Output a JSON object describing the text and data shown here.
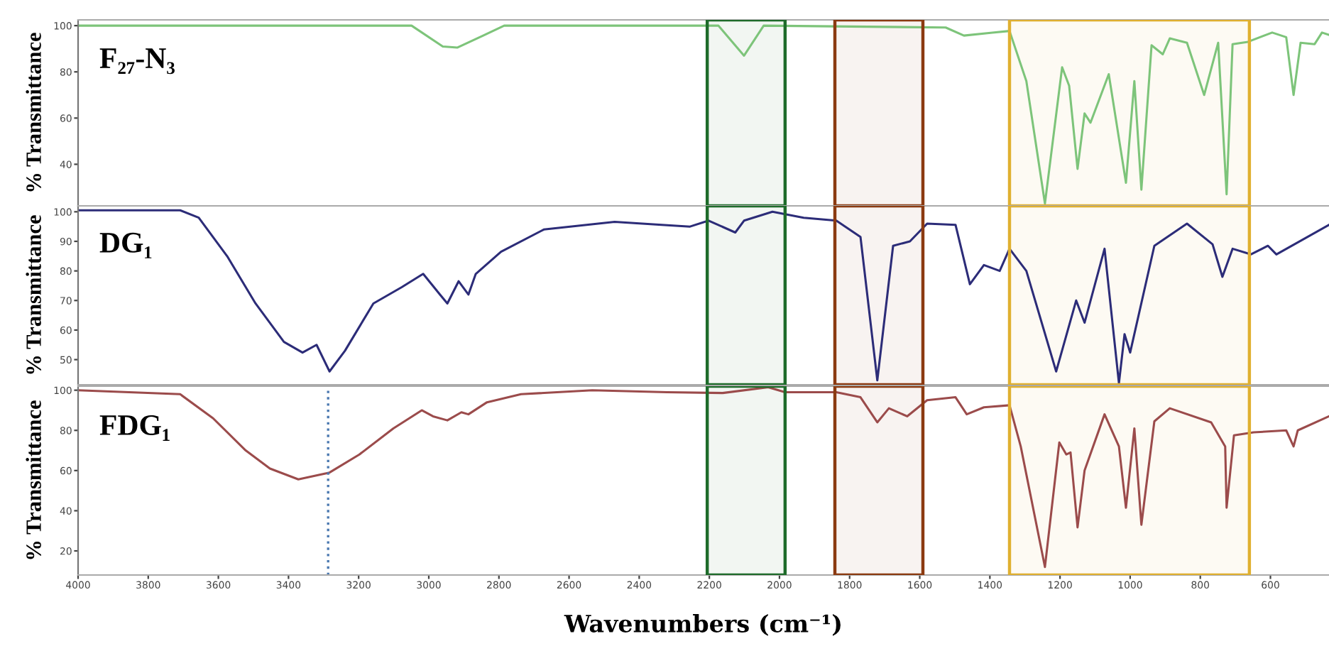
{
  "chart_data": [
    {
      "type": "line",
      "title": "F₂₇-N₃",
      "ylabel": "% Transmittance",
      "xlim": [
        4000,
        433
      ],
      "ylim": [
        22,
        102.5
      ],
      "yticks": [
        40,
        60,
        80,
        100
      ],
      "tick_labels": "y",
      "grid": false,
      "x": [
        4000,
        3300,
        3049,
        2960,
        2919,
        2846,
        2785,
        2300,
        2174,
        2101,
        2045,
        1526,
        1474,
        1393,
        1344,
        1296,
        1243,
        1194,
        1174,
        1150,
        1130,
        1113,
        1061,
        1012,
        988,
        968,
        939,
        907,
        887,
        838,
        789,
        749,
        725,
        708,
        664,
        595,
        555,
        534,
        514,
        474,
        453,
        433
      ],
      "series": [
        {
          "color": "#7dc47a",
          "values": [
            100,
            100,
            100,
            91,
            90.5,
            95.6,
            100,
            100,
            100,
            87,
            100,
            99.2,
            95.7,
            97,
            97.7,
            76,
            23,
            82,
            74,
            38,
            62,
            58,
            79,
            32,
            76,
            29,
            91.5,
            87.6,
            94.5,
            92.6,
            70,
            92.6,
            27,
            92,
            93,
            97,
            95,
            70,
            92.6,
            92,
            97,
            96
          ]
        }
      ],
      "bands": [
        {
          "axis": "x",
          "from": 2206,
          "to": 1984,
          "color": "#1e6b2a"
        },
        {
          "axis": "x",
          "from": 1842,
          "to": 1591,
          "color": "#8b3a10"
        },
        {
          "axis": "x",
          "from": 1344,
          "to": 660,
          "color": "#e0b030"
        }
      ]
    },
    {
      "type": "line",
      "title": "DG₁",
      "ylabel": "% Transmittance",
      "xlim": [
        4000,
        433
      ],
      "ylim": [
        41.5,
        102
      ],
      "yticks": [
        50,
        60,
        70,
        80,
        90,
        100
      ],
      "tick_labels": "y",
      "grid": false,
      "x": [
        4000,
        3709,
        3656,
        3575,
        3494,
        3413,
        3360,
        3320,
        3283,
        3239,
        3158,
        3077,
        3016,
        2968,
        2947,
        2915,
        2887,
        2866,
        2794,
        2672,
        2470,
        2336,
        2255,
        2202,
        2126,
        2101,
        2020,
        1931,
        1838,
        1769,
        1721,
        1676,
        1628,
        1579,
        1498,
        1457,
        1417,
        1372,
        1344,
        1296,
        1211,
        1154,
        1130,
        1073,
        1032,
        1016,
        1000,
        931,
        838,
        765,
        737,
        708,
        656,
        607,
        583,
        433
      ],
      "series": [
        {
          "color": "#2c2c78",
          "values": [
            100.5,
            100.5,
            98,
            85,
            69,
            56,
            52.4,
            55,
            46,
            53,
            69,
            74.5,
            79,
            72,
            69,
            76.5,
            72,
            79,
            86.5,
            94,
            96.6,
            95.6,
            95,
            97,
            93,
            97,
            100,
            98,
            97,
            91.5,
            43,
            88.5,
            90,
            96,
            95.6,
            75.5,
            82,
            80,
            87.5,
            80,
            46,
            70,
            62.5,
            87.5,
            42,
            58.6,
            52.4,
            88.5,
            96,
            89,
            78,
            87.5,
            85.6,
            88.5,
            85.6,
            95.6
          ]
        }
      ],
      "bands": [
        {
          "axis": "x",
          "from": 2206,
          "to": 1984,
          "color": "#1e6b2a"
        },
        {
          "axis": "x",
          "from": 1842,
          "to": 1591,
          "color": "#8b3a10"
        },
        {
          "axis": "x",
          "from": 1344,
          "to": 660,
          "color": "#e0b030"
        }
      ]
    },
    {
      "type": "line",
      "title": "FDG₁",
      "ylabel": "% Transmittance",
      "xlabel": "Wavenumbers (cm⁻¹)",
      "xlim": [
        4000,
        433
      ],
      "ylim": [
        8,
        102
      ],
      "yticks": [
        20,
        40,
        60,
        80,
        100
      ],
      "xticks": [
        4000,
        3800,
        3600,
        3400,
        3200,
        3000,
        2800,
        2600,
        2400,
        2200,
        2000,
        1800,
        1600,
        1400,
        1200,
        1000,
        800,
        600
      ],
      "grid": false,
      "x": [
        4000,
        3709,
        3615,
        3522,
        3453,
        3372,
        3283,
        3198,
        3101,
        3020,
        2988,
        2947,
        2907,
        2887,
        2834,
        2737,
        2534,
        2320,
        2162,
        2032,
        1984,
        1838,
        1769,
        1721,
        1688,
        1636,
        1579,
        1498,
        1466,
        1417,
        1344,
        1312,
        1243,
        1202,
        1182,
        1170,
        1150,
        1130,
        1073,
        1032,
        1012,
        988,
        968,
        931,
        887,
        769,
        729,
        725,
        704,
        648,
        555,
        534,
        522,
        433
      ],
      "series": [
        {
          "color": "#9b4b4b",
          "values": [
            100,
            98,
            86,
            70,
            61,
            55.6,
            59,
            68,
            81,
            90,
            87,
            85,
            89,
            88,
            94,
            98,
            100,
            99,
            98.6,
            101.5,
            99,
            99,
            96.5,
            84,
            91,
            87,
            95,
            96.5,
            88,
            91.5,
            92.5,
            72,
            12,
            74,
            68,
            69,
            31.7,
            60,
            88,
            72,
            41.5,
            81,
            33,
            84.5,
            91,
            84,
            72,
            41.5,
            77.5,
            79,
            80,
            72,
            80,
            87
          ]
        }
      ],
      "ref_lines": [
        {
          "axis": "x",
          "value": 3287,
          "color": "#4a78b0",
          "line_style": "dotted"
        }
      ],
      "bands": [
        {
          "axis": "x",
          "from": 2206,
          "to": 1984,
          "color": "#1e6b2a"
        },
        {
          "axis": "x",
          "from": 1842,
          "to": 1591,
          "color": "#8b3a10"
        },
        {
          "axis": "x",
          "from": 1344,
          "to": 660,
          "color": "#e0b030"
        }
      ]
    }
  ]
}
